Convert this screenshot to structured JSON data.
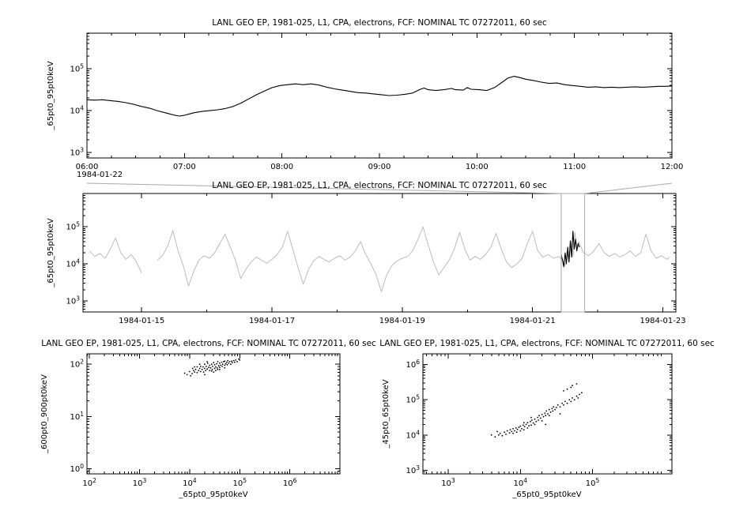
{
  "figure": {
    "background": "#ffffff",
    "foreground": "#000000",
    "overview_line_color": "#bdbdbd",
    "selection_color": "#a9a9a9"
  },
  "chart_data": [
    {
      "id": "c1",
      "type": "line",
      "title": "LANL GEO EP, 1981-025, L1, CPA, electrons, FCF: NOMINAL TC 07272011, 60 sec",
      "ylabel": "_65pt0_95pt0keV",
      "date_label": "1984-01-22",
      "x_axis": {
        "scale": "linear",
        "min": 6,
        "max": 12,
        "major": [
          6,
          7,
          8,
          9,
          10,
          11,
          12
        ],
        "labels": [
          "06:00",
          "07:00",
          "08:00",
          "09:00",
          "10:00",
          "11:00",
          "12:00"
        ],
        "minor_step": 0.25
      },
      "y_axis": {
        "scale": "log",
        "min": 2.87,
        "max": 5.85,
        "major": [
          3,
          4,
          5
        ]
      },
      "series": [
        {
          "name": "electron-flux-65-95keV",
          "color": "#000000",
          "width": 1.1,
          "x": [
            6.0,
            6.08,
            6.16,
            6.24,
            6.32,
            6.4,
            6.48,
            6.56,
            6.64,
            6.72,
            6.8,
            6.85,
            6.9,
            6.95,
            7.0,
            7.05,
            7.1,
            7.18,
            7.26,
            7.34,
            7.42,
            7.5,
            7.58,
            7.66,
            7.74,
            7.82,
            7.9,
            7.98,
            8.06,
            8.14,
            8.22,
            8.3,
            8.38,
            8.46,
            8.54,
            8.62,
            8.7,
            8.78,
            8.86,
            8.94,
            9.02,
            9.1,
            9.18,
            9.26,
            9.34,
            9.42,
            9.46,
            9.5,
            9.58,
            9.66,
            9.74,
            9.78,
            9.86,
            9.9,
            9.94,
            10.02,
            10.1,
            10.18,
            10.26,
            10.32,
            10.38,
            10.44,
            10.5,
            10.58,
            10.66,
            10.74,
            10.82,
            10.9,
            10.98,
            11.06,
            11.14,
            11.22,
            11.3,
            11.38,
            11.46,
            11.54,
            11.62,
            11.7,
            11.78,
            11.86,
            11.94,
            12.0
          ],
          "ylog": [
            4.26,
            4.25,
            4.26,
            4.24,
            4.22,
            4.19,
            4.15,
            4.1,
            4.06,
            4.0,
            3.95,
            3.92,
            3.89,
            3.87,
            3.89,
            3.92,
            3.95,
            3.98,
            4.0,
            4.02,
            4.05,
            4.1,
            4.18,
            4.28,
            4.38,
            4.47,
            4.55,
            4.6,
            4.62,
            4.64,
            4.62,
            4.64,
            4.61,
            4.56,
            4.52,
            4.49,
            4.46,
            4.43,
            4.42,
            4.4,
            4.38,
            4.36,
            4.37,
            4.39,
            4.42,
            4.51,
            4.54,
            4.5,
            4.48,
            4.5,
            4.53,
            4.5,
            4.49,
            4.55,
            4.51,
            4.5,
            4.48,
            4.55,
            4.68,
            4.78,
            4.82,
            4.79,
            4.75,
            4.72,
            4.68,
            4.65,
            4.66,
            4.62,
            4.6,
            4.58,
            4.56,
            4.57,
            4.55,
            4.56,
            4.55,
            4.56,
            4.57,
            4.56,
            4.57,
            4.58,
            4.58,
            4.59
          ]
        }
      ]
    },
    {
      "id": "c2",
      "type": "line",
      "title": "LANL GEO EP, 1981-025, L1, CPA, electrons, FCF: NOMINAL TC 07272011, 60 sec",
      "ylabel": "_65pt0_95pt0keV",
      "x_axis": {
        "scale": "linear",
        "min": 14.1,
        "max": 23.2,
        "major": [
          15,
          17,
          19,
          21,
          23
        ],
        "labels": [
          "1984-01-15",
          "1984-01-17",
          "1984-01-19",
          "1984-01-21",
          "1984-01-23"
        ],
        "minor": [
          16,
          18,
          20,
          22
        ]
      },
      "y_axis": {
        "scale": "log",
        "min": 2.7,
        "max": 5.9,
        "major": [
          3,
          4,
          5
        ]
      },
      "selection": {
        "x0": 21.44,
        "x1": 21.8,
        "color": "#a9a9a9"
      },
      "series": [
        {
          "name": "electron-flux-overview",
          "color": "#bdbdbd",
          "width": 1,
          "x": [
            14.2,
            14.28,
            14.36,
            14.44,
            14.52,
            14.6,
            14.68,
            14.76,
            14.84,
            14.92,
            15.0,
            15.08,
            15.16,
            15.24,
            15.32,
            15.4,
            15.48,
            15.56,
            15.64,
            15.72,
            15.8,
            15.88,
            15.96,
            16.04,
            16.12,
            16.2,
            16.28,
            16.36,
            16.44,
            16.52,
            16.6,
            16.68,
            16.76,
            16.84,
            16.92,
            17.0,
            17.08,
            17.16,
            17.24,
            17.32,
            17.4,
            17.48,
            17.56,
            17.64,
            17.72,
            17.8,
            17.88,
            17.96,
            18.04,
            18.12,
            18.2,
            18.28,
            18.36,
            18.44,
            18.52,
            18.6,
            18.68,
            18.76,
            18.84,
            18.92,
            19.0,
            19.08,
            19.16,
            19.24,
            19.32,
            19.4,
            19.48,
            19.56,
            19.64,
            19.72,
            19.8,
            19.88,
            19.96,
            20.04,
            20.12,
            20.2,
            20.28,
            20.36,
            20.44,
            20.52,
            20.6,
            20.68,
            20.76,
            20.84,
            20.92,
            21.0,
            21.08,
            21.16,
            21.24,
            21.32,
            21.4,
            21.46,
            21.5,
            21.53,
            21.56,
            21.59,
            21.62,
            21.65,
            21.68,
            21.71,
            21.78,
            21.86,
            21.94,
            22.02,
            22.1,
            22.18,
            22.26,
            22.34,
            22.42,
            22.5,
            22.58,
            22.66,
            22.74,
            22.82,
            22.9,
            22.98,
            23.06,
            23.1
          ],
          "ylog": [
            4.35,
            4.2,
            4.28,
            4.15,
            4.4,
            4.7,
            4.3,
            4.12,
            4.25,
            4.05,
            3.75,
            null,
            null,
            4.1,
            4.22,
            4.48,
            4.9,
            4.35,
            3.95,
            3.4,
            3.8,
            4.1,
            4.22,
            4.15,
            4.3,
            4.55,
            4.8,
            4.45,
            4.1,
            3.6,
            3.85,
            4.05,
            4.18,
            4.1,
            4.02,
            4.12,
            4.25,
            4.45,
            4.88,
            4.4,
            3.9,
            3.45,
            3.85,
            4.08,
            4.2,
            4.12,
            4.05,
            4.15,
            4.22,
            4.1,
            4.18,
            4.35,
            4.6,
            4.25,
            4.0,
            3.7,
            3.25,
            3.7,
            3.95,
            4.08,
            4.15,
            4.2,
            4.35,
            4.65,
            5.0,
            4.5,
            4.05,
            3.7,
            3.9,
            4.1,
            4.4,
            4.85,
            4.4,
            4.1,
            4.2,
            4.12,
            4.25,
            4.45,
            4.82,
            4.4,
            4.05,
            3.9,
            4.0,
            4.15,
            4.55,
            4.88,
            4.35,
            4.18,
            4.25,
            4.15,
            4.2,
            4.1,
            3.95,
            4.35,
            4.05,
            4.6,
            4.2,
            4.85,
            4.45,
            4.6,
            4.3,
            4.22,
            4.35,
            4.55,
            4.3,
            4.2,
            4.28,
            4.18,
            4.25,
            4.35,
            4.2,
            4.3,
            4.8,
            4.35,
            4.15,
            4.22,
            4.12,
            4.18
          ]
        },
        {
          "name": "electron-flux-selected-interval",
          "color": "#000000",
          "width": 1.1,
          "x": [
            21.44,
            21.46,
            21.48,
            21.5,
            21.52,
            21.54,
            21.56,
            21.58,
            21.6,
            21.62,
            21.64,
            21.66,
            21.68,
            21.7,
            21.72
          ],
          "ylog": [
            4.25,
            4.1,
            3.92,
            4.3,
            4.0,
            4.45,
            4.05,
            4.62,
            4.18,
            4.88,
            4.4,
            4.66,
            4.35,
            4.55,
            4.45
          ]
        }
      ]
    },
    {
      "id": "c3",
      "type": "scatter",
      "title": "LANL GEO EP, 1981-025, L1, CPA, electrons, FCF: NOMINAL TC 07272011, 60 sec",
      "xlabel": "_65pt0_95pt0keV",
      "ylabel": "_600pt0_900pt0keV",
      "point_color": "#000000",
      "x_axis": {
        "scale": "log",
        "min": 1.95,
        "max": 7.0,
        "major": [
          2,
          3,
          4,
          5,
          6
        ]
      },
      "y_axis": {
        "scale": "log",
        "min": -0.1,
        "max": 2.2,
        "major": [
          0,
          1,
          2
        ]
      },
      "points": [
        [
          3.9,
          1.83
        ],
        [
          3.95,
          1.8
        ],
        [
          4.0,
          1.86
        ],
        [
          4.02,
          1.78
        ],
        [
          4.05,
          1.82
        ],
        [
          4.06,
          1.92
        ],
        [
          4.08,
          1.88
        ],
        [
          4.1,
          1.85
        ],
        [
          4.1,
          1.95
        ],
        [
          4.12,
          1.9
        ],
        [
          4.15,
          1.84
        ],
        [
          4.15,
          1.95
        ],
        [
          4.18,
          1.88
        ],
        [
          4.2,
          1.92
        ],
        [
          4.2,
          2.0
        ],
        [
          4.22,
          1.86
        ],
        [
          4.22,
          1.96
        ],
        [
          4.25,
          1.9
        ],
        [
          4.27,
          1.95
        ],
        [
          4.28,
          1.85
        ],
        [
          4.3,
          1.8
        ],
        [
          4.3,
          1.92
        ],
        [
          4.3,
          2.0
        ],
        [
          4.32,
          1.88
        ],
        [
          4.33,
          1.96
        ],
        [
          4.35,
          1.91
        ],
        [
          4.35,
          2.05
        ],
        [
          4.36,
          2.02
        ],
        [
          4.38,
          1.94
        ],
        [
          4.4,
          1.88
        ],
        [
          4.4,
          1.98
        ],
        [
          4.42,
          1.93
        ],
        [
          4.44,
          1.87
        ],
        [
          4.44,
          2.0
        ],
        [
          4.45,
          1.9
        ],
        [
          4.46,
          1.96
        ],
        [
          4.48,
          1.85
        ],
        [
          4.48,
          2.03
        ],
        [
          4.5,
          1.92
        ],
        [
          4.5,
          1.99
        ],
        [
          4.52,
          1.88
        ],
        [
          4.52,
          1.95
        ],
        [
          4.54,
          2.01
        ],
        [
          4.55,
          1.93
        ],
        [
          4.56,
          1.9
        ],
        [
          4.56,
          2.05
        ],
        [
          4.58,
          1.97
        ],
        [
          4.6,
          1.9
        ],
        [
          4.6,
          1.94
        ],
        [
          4.6,
          2.02
        ],
        [
          4.62,
          1.98
        ],
        [
          4.64,
          2.04
        ],
        [
          4.65,
          1.96
        ],
        [
          4.66,
          2.0
        ],
        [
          4.68,
          2.05
        ],
        [
          4.7,
          1.93
        ],
        [
          4.7,
          1.98
        ],
        [
          4.7,
          2.06
        ],
        [
          4.72,
          2.01
        ],
        [
          4.74,
          2.04
        ],
        [
          4.75,
          1.99
        ],
        [
          4.76,
          2.07
        ],
        [
          4.78,
          2.02
        ],
        [
          4.8,
          2.05
        ],
        [
          4.82,
          2.0
        ],
        [
          4.84,
          2.06
        ],
        [
          4.85,
          2.03
        ],
        [
          4.88,
          2.07
        ],
        [
          4.9,
          2.04
        ],
        [
          4.92,
          2.08
        ],
        [
          4.95,
          2.05
        ],
        [
          4.98,
          2.1
        ],
        [
          5.0,
          2.08
        ]
      ]
    },
    {
      "id": "c4",
      "type": "scatter",
      "title": "LANL GEO EP, 1981-025, L1, CPA, electrons, FCF: NOMINAL TC 07272011, 60 sec",
      "xlabel": "_65pt0_95pt0keV",
      "ylabel": "_45pt0_65pt0keV",
      "point_color": "#000000",
      "x_axis": {
        "scale": "log",
        "min": 2.65,
        "max": 6.1,
        "major": [
          3,
          4,
          5
        ]
      },
      "y_axis": {
        "scale": "log",
        "min": 2.9,
        "max": 6.3,
        "major": [
          3,
          4,
          5,
          6
        ]
      },
      "points": [
        [
          3.6,
          4.0
        ],
        [
          3.65,
          3.95
        ],
        [
          3.68,
          4.1
        ],
        [
          3.7,
          4.0
        ],
        [
          3.72,
          4.05
        ],
        [
          3.75,
          3.98
        ],
        [
          3.78,
          4.08
        ],
        [
          3.8,
          4.02
        ],
        [
          3.82,
          4.12
        ],
        [
          3.85,
          4.06
        ],
        [
          3.86,
          4.15
        ],
        [
          3.88,
          4.1
        ],
        [
          3.9,
          4.05
        ],
        [
          3.9,
          4.18
        ],
        [
          3.92,
          4.12
        ],
        [
          3.94,
          4.2
        ],
        [
          3.95,
          4.08
        ],
        [
          3.96,
          4.16
        ],
        [
          3.98,
          4.22
        ],
        [
          4.0,
          4.12
        ],
        [
          4.0,
          4.25
        ],
        [
          4.02,
          4.18
        ],
        [
          4.04,
          4.28
        ],
        [
          4.05,
          4.15
        ],
        [
          4.05,
          4.35
        ],
        [
          4.06,
          4.24
        ],
        [
          4.08,
          4.3
        ],
        [
          4.1,
          4.2
        ],
        [
          4.1,
          4.35
        ],
        [
          4.12,
          4.26
        ],
        [
          4.14,
          4.38
        ],
        [
          4.15,
          4.28
        ],
        [
          4.15,
          4.5
        ],
        [
          4.16,
          4.42
        ],
        [
          4.18,
          4.34
        ],
        [
          4.2,
          4.3
        ],
        [
          4.2,
          4.45
        ],
        [
          4.22,
          4.38
        ],
        [
          4.24,
          4.5
        ],
        [
          4.25,
          4.42
        ],
        [
          4.26,
          4.55
        ],
        [
          4.28,
          4.48
        ],
        [
          4.3,
          4.4
        ],
        [
          4.3,
          4.58
        ],
        [
          4.32,
          4.52
        ],
        [
          4.34,
          4.62
        ],
        [
          4.35,
          4.3
        ],
        [
          4.35,
          4.55
        ],
        [
          4.36,
          4.68
        ],
        [
          4.38,
          4.6
        ],
        [
          4.4,
          4.55
        ],
        [
          4.4,
          4.72
        ],
        [
          4.42,
          4.65
        ],
        [
          4.44,
          4.75
        ],
        [
          4.45,
          4.68
        ],
        [
          4.46,
          4.8
        ],
        [
          4.48,
          4.72
        ],
        [
          4.5,
          4.78
        ],
        [
          4.52,
          4.85
        ],
        [
          4.55,
          4.6
        ],
        [
          4.55,
          4.8
        ],
        [
          4.58,
          4.9
        ],
        [
          4.6,
          4.85
        ],
        [
          4.6,
          5.25
        ],
        [
          4.62,
          4.95
        ],
        [
          4.65,
          4.9
        ],
        [
          4.65,
          5.3
        ],
        [
          4.68,
          5.0
        ],
        [
          4.7,
          4.95
        ],
        [
          4.7,
          5.35
        ],
        [
          4.72,
          5.05
        ],
        [
          4.72,
          5.4
        ],
        [
          4.75,
          5.0
        ],
        [
          4.78,
          5.1
        ],
        [
          4.78,
          5.45
        ],
        [
          4.8,
          5.05
        ],
        [
          4.82,
          5.15
        ],
        [
          4.85,
          5.2
        ]
      ]
    }
  ]
}
